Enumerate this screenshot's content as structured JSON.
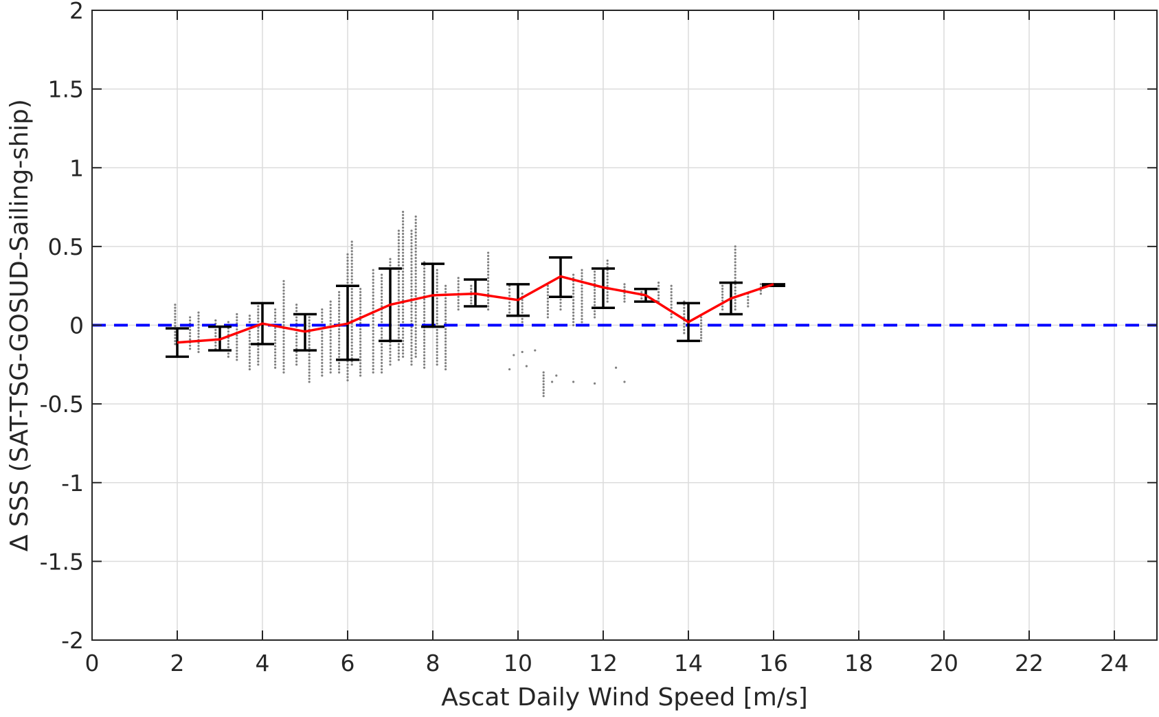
{
  "chart_data": {
    "type": "scatter",
    "xlabel": "Ascat Daily Wind Speed [m/s]",
    "ylabel": "∆ SSS (SAT-TSG-GOSUD-Sailing-ship)",
    "xlim": [
      0,
      25
    ],
    "ylim": [
      -2,
      2
    ],
    "xticks": [
      0,
      2,
      4,
      6,
      8,
      10,
      12,
      14,
      16,
      18,
      20,
      22,
      24
    ],
    "yticks": [
      -2,
      -1.5,
      -1,
      -0.5,
      0,
      0.5,
      1,
      1.5,
      2
    ],
    "xtick_labels": [
      "0",
      "2",
      "4",
      "6",
      "8",
      "10",
      "12",
      "14",
      "16",
      "18",
      "20",
      "22",
      "24"
    ],
    "ytick_labels": [
      "-2",
      "-1.5",
      "-1",
      "-0.5",
      "0",
      "0.5",
      "1",
      "1.5",
      "2"
    ],
    "grid": true,
    "reference_line": {
      "y": 0,
      "style": "dashed",
      "color": "#0000ff"
    },
    "series": [
      {
        "kind": "binned-mean",
        "color": "#ff0000",
        "x": [
          2,
          3,
          4,
          5,
          6,
          7,
          8,
          9,
          10,
          11,
          12,
          13,
          14,
          15,
          16
        ],
        "y": [
          -0.11,
          -0.09,
          0.01,
          -0.04,
          0.01,
          0.13,
          0.19,
          0.2,
          0.16,
          0.31,
          0.24,
          0.19,
          0.02,
          0.17,
          0.26
        ],
        "err_low": [
          -0.2,
          -0.16,
          -0.12,
          -0.16,
          -0.22,
          -0.1,
          -0.01,
          0.12,
          0.06,
          0.18,
          0.11,
          0.15,
          -0.1,
          0.07,
          0.25
        ],
        "err_high": [
          -0.02,
          -0.01,
          0.14,
          0.07,
          0.25,
          0.36,
          0.39,
          0.29,
          0.26,
          0.43,
          0.36,
          0.23,
          0.14,
          0.27,
          0.26
        ]
      },
      {
        "kind": "raw-points",
        "color": "#808080",
        "clusters": [
          {
            "x": 1.95,
            "ymin": -0.12,
            "ymax": 0.13
          },
          {
            "x": 2.3,
            "ymin": -0.15,
            "ymax": 0.05
          },
          {
            "x": 2.5,
            "ymin": -0.17,
            "ymax": 0.08
          },
          {
            "x": 2.9,
            "ymin": -0.15,
            "ymax": 0.03
          },
          {
            "x": 3.2,
            "ymin": -0.2,
            "ymax": 0.02
          },
          {
            "x": 3.4,
            "ymin": -0.22,
            "ymax": 0.07
          },
          {
            "x": 3.7,
            "ymin": -0.28,
            "ymax": 0.06
          },
          {
            "x": 3.9,
            "ymin": -0.25,
            "ymax": 0.14
          },
          {
            "x": 4.3,
            "ymin": -0.27,
            "ymax": 0.1
          },
          {
            "x": 4.5,
            "ymin": -0.3,
            "ymax": 0.28
          },
          {
            "x": 4.8,
            "ymin": -0.25,
            "ymax": 0.13
          },
          {
            "x": 5.1,
            "ymin": -0.36,
            "ymax": 0.07
          },
          {
            "x": 5.4,
            "ymin": -0.32,
            "ymax": 0.1
          },
          {
            "x": 5.6,
            "ymin": -0.3,
            "ymax": 0.15
          },
          {
            "x": 5.8,
            "ymin": -0.3,
            "ymax": 0.21
          },
          {
            "x": 6.0,
            "ymin": -0.35,
            "ymax": 0.45
          },
          {
            "x": 6.1,
            "ymin": -0.25,
            "ymax": 0.53
          },
          {
            "x": 6.3,
            "ymin": -0.32,
            "ymax": 0.23
          },
          {
            "x": 6.6,
            "ymin": -0.3,
            "ymax": 0.35
          },
          {
            "x": 6.8,
            "ymin": -0.3,
            "ymax": 0.32
          },
          {
            "x": 7.0,
            "ymin": -0.25,
            "ymax": 0.42
          },
          {
            "x": 7.2,
            "ymin": -0.22,
            "ymax": 0.6
          },
          {
            "x": 7.3,
            "ymin": -0.2,
            "ymax": 0.72
          },
          {
            "x": 7.5,
            "ymin": -0.25,
            "ymax": 0.6
          },
          {
            "x": 7.6,
            "ymin": -0.2,
            "ymax": 0.69
          },
          {
            "x": 7.8,
            "ymin": -0.27,
            "ymax": 0.4
          },
          {
            "x": 8.1,
            "ymin": -0.25,
            "ymax": 0.35
          },
          {
            "x": 8.3,
            "ymin": -0.28,
            "ymax": 0.25
          },
          {
            "x": 8.6,
            "ymin": 0.1,
            "ymax": 0.3
          },
          {
            "x": 8.9,
            "ymin": 0.12,
            "ymax": 0.25
          },
          {
            "x": 9.3,
            "ymin": 0.1,
            "ymax": 0.46
          },
          {
            "x": 9.8,
            "ymin": 0.08,
            "ymax": 0.25
          },
          {
            "x": 10.1,
            "ymin": 0.0,
            "ymax": 0.2
          },
          {
            "x": 10.6,
            "ymin": -0.45,
            "ymax": -0.3
          },
          {
            "x": 10.7,
            "ymin": 0.05,
            "ymax": 0.25
          },
          {
            "x": 11.0,
            "ymin": 0.1,
            "ymax": 0.35
          },
          {
            "x": 11.3,
            "ymin": 0.0,
            "ymax": 0.32
          },
          {
            "x": 11.5,
            "ymin": 0.0,
            "ymax": 0.35
          },
          {
            "x": 11.8,
            "ymin": 0.05,
            "ymax": 0.34
          },
          {
            "x": 12.1,
            "ymin": 0.15,
            "ymax": 0.41
          },
          {
            "x": 12.5,
            "ymin": 0.15,
            "ymax": 0.26
          },
          {
            "x": 12.9,
            "ymin": 0.15,
            "ymax": 0.23
          },
          {
            "x": 13.3,
            "ymin": 0.15,
            "ymax": 0.27
          },
          {
            "x": 13.6,
            "ymin": 0.05,
            "ymax": 0.25
          },
          {
            "x": 13.9,
            "ymin": -0.05,
            "ymax": 0.15
          },
          {
            "x": 14.3,
            "ymin": -0.1,
            "ymax": 0.05
          },
          {
            "x": 14.8,
            "ymin": 0.1,
            "ymax": 0.25
          },
          {
            "x": 15.1,
            "ymin": 0.1,
            "ymax": 0.5
          },
          {
            "x": 15.4,
            "ymin": 0.12,
            "ymax": 0.2
          },
          {
            "x": 15.7,
            "ymin": 0.2,
            "ymax": 0.26
          }
        ],
        "outliers": [
          [
            9.8,
            -0.28
          ],
          [
            9.9,
            -0.19
          ],
          [
            10.1,
            -0.17
          ],
          [
            10.2,
            -0.26
          ],
          [
            10.4,
            -0.16
          ],
          [
            11.3,
            -0.36
          ],
          [
            11.8,
            -0.37
          ],
          [
            12.3,
            -0.27
          ],
          [
            12.5,
            -0.36
          ],
          [
            10.8,
            -0.36
          ],
          [
            10.9,
            -0.32
          ]
        ]
      }
    ]
  }
}
